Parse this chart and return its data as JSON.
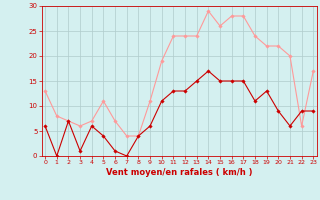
{
  "x": [
    0,
    1,
    2,
    3,
    4,
    5,
    6,
    7,
    8,
    9,
    10,
    11,
    12,
    13,
    14,
    15,
    16,
    17,
    18,
    19,
    20,
    21,
    22,
    23
  ],
  "wind_mean": [
    6,
    0,
    7,
    1,
    6,
    4,
    1,
    0,
    4,
    6,
    11,
    13,
    13,
    15,
    17,
    15,
    15,
    15,
    11,
    13,
    9,
    6,
    9,
    9
  ],
  "wind_gust": [
    13,
    8,
    7,
    6,
    7,
    11,
    7,
    4,
    4,
    11,
    19,
    24,
    24,
    24,
    29,
    26,
    28,
    28,
    24,
    22,
    22,
    20,
    6,
    17
  ],
  "bg_color": "#d4f0f0",
  "line_mean_color": "#cc0000",
  "line_gust_color": "#ff9999",
  "grid_color": "#b0cccc",
  "xlabel": "Vent moyen/en rafales ( km/h )",
  "xlabel_color": "#cc0000",
  "tick_color": "#cc0000",
  "ylim": [
    0,
    30
  ],
  "yticks": [
    0,
    5,
    10,
    15,
    20,
    25,
    30
  ],
  "figsize": [
    3.2,
    2.0
  ],
  "dpi": 100
}
